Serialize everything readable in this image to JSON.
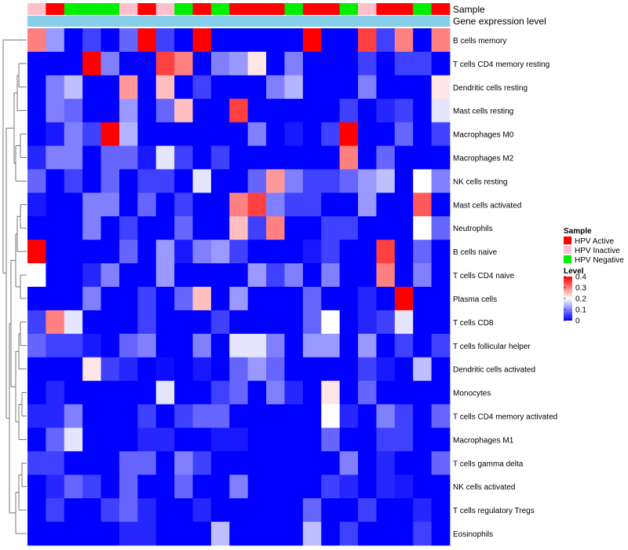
{
  "chart_data": {
    "type": "heatmap",
    "annotation_titles": [
      "Sample",
      "Gene expression level"
    ],
    "sample_annotation": [
      "HPV Inactive",
      "HPV Active",
      "HPV Negative",
      "HPV Negative",
      "HPV Negative",
      "HPV Inactive",
      "HPV Active",
      "HPV Inactive",
      "HPV Negative",
      "HPV Active",
      "HPV Negative",
      "HPV Active",
      "HPV Active",
      "HPV Active",
      "HPV Negative",
      "HPV Active",
      "HPV Active",
      "HPV Negative",
      "HPV Inactive",
      "HPV Active",
      "HPV Active",
      "HPV Negative",
      "HPV Active"
    ],
    "gene_expression_annotation": [
      "high",
      "high",
      "high",
      "high",
      "high",
      "high",
      "high",
      "high",
      "high",
      "high",
      "high",
      "high",
      "high",
      "high",
      "high",
      "high",
      "high",
      "high",
      "high",
      "high",
      "high",
      "high",
      "high"
    ],
    "rows": [
      "B cells memory",
      "T cells CD4 memory resting",
      "Dendritic cells resting",
      "Mast cells resting",
      "Macrophages M0",
      "Macrophages M2",
      "NK cells resting",
      "Mast cells activated",
      "Neutrophils",
      "B cells naive",
      "T cells CD4 naive",
      "Plasma cells",
      "T cells CD8",
      "T cells follicular helper",
      "Dendritic cells activated",
      "Monocytes",
      "T cells CD4 memory activated",
      "Macrophages M1",
      "T cells gamma delta",
      "NK cells activated",
      "T cells regulatory  Tregs",
      "Eosinophils"
    ],
    "values": [
      [
        0.3,
        0.12,
        0.0,
        0.05,
        0.0,
        0.08,
        0.4,
        0.05,
        0.0,
        0.4,
        0.0,
        0.0,
        0.0,
        0.0,
        0.0,
        0.4,
        0.0,
        0.0,
        0.35,
        0.05,
        0.3,
        0.0,
        0.3
      ],
      [
        0.0,
        0.0,
        0.0,
        0.4,
        0.1,
        0.0,
        0.0,
        0.35,
        0.3,
        0.0,
        0.1,
        0.12,
        0.22,
        0.0,
        0.1,
        0.0,
        0.0,
        0.0,
        0.05,
        0.0,
        0.05,
        0.05,
        0.0
      ],
      [
        0.0,
        0.1,
        0.15,
        0.0,
        0.0,
        0.28,
        0.0,
        0.25,
        0.0,
        0.05,
        0.0,
        0.0,
        0.0,
        0.1,
        0.14,
        0.0,
        0.0,
        0.0,
        0.1,
        0.0,
        0.0,
        0.0,
        0.22
      ],
      [
        0.0,
        0.1,
        0.08,
        0.0,
        0.0,
        0.12,
        0.0,
        0.08,
        0.25,
        0.0,
        0.0,
        0.35,
        0.0,
        0.0,
        0.0,
        0.0,
        0.0,
        0.05,
        0.0,
        0.03,
        0.05,
        0.0,
        0.18
      ],
      [
        0.0,
        0.02,
        0.1,
        0.05,
        0.4,
        0.14,
        0.0,
        0.0,
        0.0,
        0.0,
        0.0,
        0.0,
        0.1,
        0.0,
        0.02,
        0.0,
        0.05,
        0.4,
        0.0,
        0.0,
        0.08,
        0.0,
        0.05
      ],
      [
        0.03,
        0.1,
        0.1,
        0.0,
        0.08,
        0.08,
        0.02,
        0.18,
        0.05,
        0.0,
        0.05,
        0.0,
        0.0,
        0.0,
        0.0,
        0.0,
        0.0,
        0.3,
        0.0,
        0.08,
        0.0,
        0.0,
        0.0
      ],
      [
        0.08,
        0.0,
        0.05,
        0.0,
        0.08,
        0.0,
        0.05,
        0.05,
        0.0,
        0.18,
        0.0,
        0.0,
        0.08,
        0.28,
        0.1,
        0.05,
        0.05,
        0.08,
        0.12,
        0.15,
        0.0,
        0.2,
        0.1
      ],
      [
        0.02,
        0.0,
        0.0,
        0.1,
        0.1,
        0.0,
        0.08,
        0.0,
        0.05,
        0.0,
        0.0,
        0.3,
        0.35,
        0.1,
        0.05,
        0.05,
        0.0,
        0.0,
        0.12,
        0.0,
        0.0,
        0.33,
        0.0
      ],
      [
        0.0,
        0.0,
        0.0,
        0.1,
        0.0,
        0.05,
        0.0,
        0.0,
        0.08,
        0.0,
        0.0,
        0.25,
        0.05,
        0.3,
        0.0,
        0.0,
        0.05,
        0.05,
        0.0,
        0.0,
        0.0,
        0.2,
        0.08
      ],
      [
        0.4,
        0.0,
        0.0,
        0.0,
        0.0,
        0.08,
        0.0,
        0.12,
        0.02,
        0.1,
        0.12,
        0.05,
        0.0,
        0.0,
        0.0,
        0.02,
        0.05,
        0.0,
        0.0,
        0.35,
        0.0,
        0.08,
        0.0
      ],
      [
        0.2,
        0.0,
        0.0,
        0.03,
        0.1,
        0.0,
        0.0,
        0.12,
        0.0,
        0.0,
        0.0,
        0.0,
        0.12,
        0.05,
        0.1,
        0.0,
        0.1,
        0.0,
        0.0,
        0.3,
        0.0,
        0.1,
        0.0
      ],
      [
        0.0,
        0.0,
        0.0,
        0.1,
        0.0,
        0.0,
        0.05,
        0.0,
        0.08,
        0.25,
        0.0,
        0.12,
        0.0,
        0.0,
        0.0,
        0.08,
        0.0,
        0.0,
        0.03,
        0.0,
        0.4,
        0.0,
        0.0
      ],
      [
        0.05,
        0.3,
        0.18,
        0.0,
        0.0,
        0.0,
        0.05,
        0.0,
        0.0,
        0.0,
        0.05,
        0.0,
        0.0,
        0.0,
        0.0,
        0.08,
        0.2,
        0.0,
        0.03,
        0.05,
        0.18,
        0.0,
        0.0
      ],
      [
        0.08,
        0.05,
        0.05,
        0.02,
        0.0,
        0.08,
        0.1,
        0.0,
        0.0,
        0.1,
        0.0,
        0.18,
        0.18,
        0.1,
        0.0,
        0.12,
        0.12,
        0.0,
        0.12,
        0.0,
        0.05,
        0.0,
        0.05
      ],
      [
        0.0,
        0.0,
        0.0,
        0.22,
        0.05,
        0.03,
        0.0,
        0.01,
        0.0,
        0.02,
        0.0,
        0.08,
        0.12,
        0.08,
        0.0,
        0.0,
        0.0,
        0.0,
        0.05,
        0.02,
        0.0,
        0.15,
        0.0
      ],
      [
        0.0,
        0.03,
        0.0,
        0.0,
        0.0,
        0.0,
        0.0,
        0.18,
        0.0,
        0.0,
        0.05,
        0.08,
        0.0,
        0.1,
        0.03,
        0.0,
        0.22,
        0.0,
        0.08,
        0.0,
        0.0,
        0.0,
        0.0
      ],
      [
        0.03,
        0.03,
        0.1,
        0.0,
        0.0,
        0.0,
        0.05,
        0.0,
        0.05,
        0.08,
        0.08,
        0.0,
        0.0,
        0.0,
        0.0,
        0.0,
        0.2,
        0.03,
        0.0,
        0.1,
        0.05,
        0.0,
        0.08
      ],
      [
        0.0,
        0.08,
        0.18,
        0.0,
        0.0,
        0.0,
        0.03,
        0.03,
        0.0,
        0.0,
        0.02,
        0.02,
        0.0,
        0.0,
        0.0,
        0.0,
        0.08,
        0.0,
        0.0,
        0.05,
        0.05,
        0.0,
        0.0
      ],
      [
        0.05,
        0.05,
        0.0,
        0.0,
        0.0,
        0.08,
        0.08,
        0.0,
        0.1,
        0.05,
        0.0,
        0.0,
        0.0,
        0.0,
        0.0,
        0.0,
        0.0,
        0.1,
        0.0,
        0.03,
        0.0,
        0.0,
        0.08
      ],
      [
        0.0,
        0.03,
        0.08,
        0.05,
        0.0,
        0.08,
        0.0,
        0.0,
        0.08,
        0.0,
        0.0,
        0.1,
        0.0,
        0.0,
        0.0,
        0.0,
        0.05,
        0.03,
        0.0,
        0.03,
        0.02,
        0.0,
        0.0
      ],
      [
        0.0,
        0.05,
        0.0,
        0.0,
        0.05,
        0.08,
        0.03,
        0.0,
        0.0,
        0.03,
        0.0,
        0.0,
        0.0,
        0.0,
        0.0,
        0.08,
        0.0,
        0.0,
        0.05,
        0.0,
        0.0,
        0.03,
        0.0
      ],
      [
        0.0,
        0.0,
        0.0,
        0.0,
        0.0,
        0.03,
        0.03,
        0.0,
        0.0,
        0.0,
        0.15,
        0.0,
        0.0,
        0.0,
        0.0,
        0.15,
        0.0,
        0.05,
        0.0,
        0.0,
        0.0,
        0.05,
        0.0
      ]
    ],
    "sample_legend": {
      "title": "Sample",
      "entries": [
        {
          "label": "HPV Active",
          "color": "#ff0000"
        },
        {
          "label": "HPV Inactive",
          "color": "#ffc0cb"
        },
        {
          "label": "HPV Negative",
          "color": "#00ee00"
        }
      ]
    },
    "level_legend": {
      "title": "Level",
      "ticks": [
        "0.4",
        "0.3",
        "0.2",
        "0.1",
        "0"
      ],
      "range": [
        0,
        0.4
      ]
    },
    "colors": {
      "low": "#0000ff",
      "mid": "#ffffff",
      "high": "#ff0000",
      "gene_expression_high": "#87ceeb"
    }
  }
}
